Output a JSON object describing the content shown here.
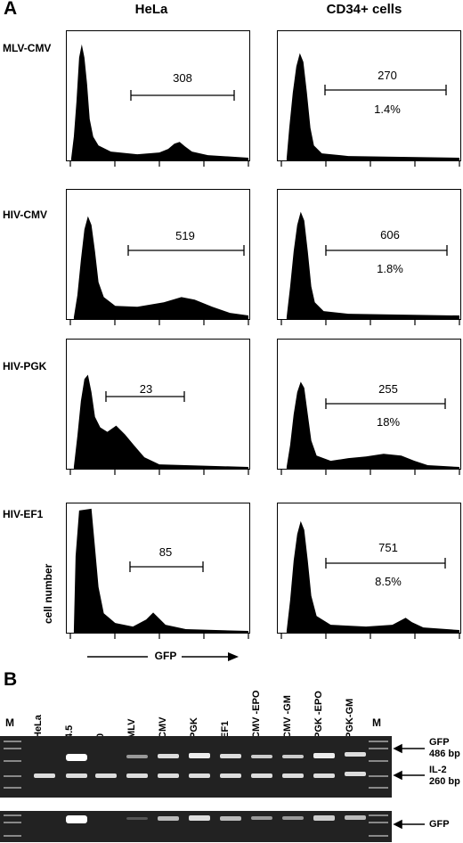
{
  "panelA": {
    "letter": "A",
    "col_titles": [
      "HeLa",
      "CD34+ cells"
    ],
    "rows": [
      {
        "label": "MLV-CMV",
        "hela": {
          "marker": "308"
        },
        "cd34": {
          "marker": "270",
          "pct": "1.4%"
        }
      },
      {
        "label": "HIV-CMV",
        "hela": {
          "marker": "519"
        },
        "cd34": {
          "marker": "606",
          "pct": "1.8%"
        }
      },
      {
        "label": "HIV-PGK",
        "hela": {
          "marker": "23"
        },
        "cd34": {
          "marker": "255",
          "pct": "18%"
        }
      },
      {
        "label": "HIV-EF1",
        "hela": {
          "marker": "85"
        },
        "cd34": {
          "marker": "751",
          "pct": "8.5%"
        }
      }
    ],
    "y_axis_label": "cell number",
    "x_axis_label": "GFP"
  },
  "panelB": {
    "letter": "B",
    "lanes": [
      "M",
      "HeLa",
      "4.5",
      "0",
      "MLV",
      "CMV",
      "PGK",
      "EF1",
      "CMV -EPO",
      "CMV -GM",
      "PGK -EPO",
      "PGK-GM",
      "M"
    ],
    "bands": {
      "gfp": {
        "label": "GFP",
        "size": "486 bp"
      },
      "il2": {
        "label": "IL-2",
        "size": "260 bp"
      },
      "gfp2": {
        "label": "GFP"
      }
    }
  }
}
